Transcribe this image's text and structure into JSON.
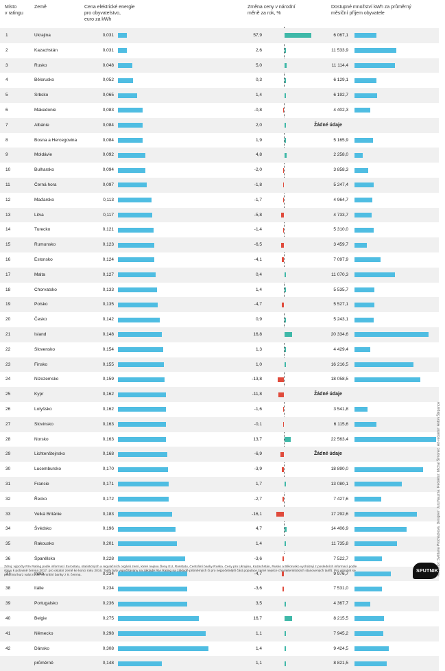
{
  "headers": {
    "rank": [
      "Místo",
      "v ratingu"
    ],
    "country": "Země",
    "price": [
      "Cena elektrické energie",
      "pro obyvatelstvo,",
      "euro za kWh"
    ],
    "change": [
      "Změna ceny v národní",
      "měně za rok, %"
    ],
    "kwh": [
      "Dostupné množství kWh za průměrný",
      "měsíční příjem obyvatele"
    ]
  },
  "colors": {
    "price_bar": "#4fbde2",
    "kwh_bar": "#4fbde2",
    "change_positive": "#3fb8a8",
    "change_negative": "#e04b3c",
    "row_shade": "#f0f0f0"
  },
  "no_data_label": "Žádné údaje",
  "chart_data": {
    "type": "table",
    "columns": [
      "Místo v ratingu",
      "Země",
      "Cena elektrické energie pro obyvatelstvo, euro za kWh",
      "Změna ceny v národní měně za rok, %",
      "Dostupné množství kWh za průměrný měsíční příjem obyvatele"
    ],
    "rows": [
      {
        "rank": "1",
        "country": "Ukrajina",
        "price": 0.031,
        "price_label": "0,031",
        "change": 57.9,
        "change_label": "57,9",
        "kwh": 6067.1,
        "kwh_label": "6 067,1"
      },
      {
        "rank": "2",
        "country": "Kazachstán",
        "price": 0.031,
        "price_label": "0,031",
        "change": 2.6,
        "change_label": "2,6",
        "kwh": 11533.9,
        "kwh_label": "11 533,9"
      },
      {
        "rank": "3",
        "country": "Rusko",
        "price": 0.048,
        "price_label": "0,048",
        "change": 5.0,
        "change_label": "5,0",
        "kwh": 11114.4,
        "kwh_label": "11 114,4"
      },
      {
        "rank": "4",
        "country": "Bělorusko",
        "price": 0.052,
        "price_label": "0,052",
        "change": 0.3,
        "change_label": "0,3",
        "kwh": 6129.1,
        "kwh_label": "6 129,1"
      },
      {
        "rank": "5",
        "country": "Srbsko",
        "price": 0.065,
        "price_label": "0,065",
        "change": 1.4,
        "change_label": "1,4",
        "kwh": 6192.7,
        "kwh_label": "6 192,7"
      },
      {
        "rank": "6",
        "country": "Makedonie",
        "price": 0.083,
        "price_label": "0,083",
        "change": -0.8,
        "change_label": "-0,8",
        "kwh": 4402.3,
        "kwh_label": "4 402,3"
      },
      {
        "rank": "7",
        "country": "Albánie",
        "price": 0.084,
        "price_label": "0,084",
        "change": 2.0,
        "change_label": "2,0",
        "kwh": null,
        "kwh_label": ""
      },
      {
        "rank": "8",
        "country": "Bosna a Hercegovina",
        "price": 0.084,
        "price_label": "0,084",
        "change": 1.9,
        "change_label": "1,9",
        "kwh": 5165.9,
        "kwh_label": "5 165,9"
      },
      {
        "rank": "9",
        "country": "Moldávie",
        "price": 0.092,
        "price_label": "0,092",
        "change": 4.8,
        "change_label": "4,8",
        "kwh": 2258.0,
        "kwh_label": "2 258,0"
      },
      {
        "rank": "10",
        "country": "Bulharsko",
        "price": 0.094,
        "price_label": "0,094",
        "change": -2.0,
        "change_label": "-2,0",
        "kwh": 3858.3,
        "kwh_label": "3 858,3"
      },
      {
        "rank": "11",
        "country": "Černá hora",
        "price": 0.097,
        "price_label": "0,097",
        "change": -1.8,
        "change_label": "-1,8",
        "kwh": 5247.4,
        "kwh_label": "5 247,4"
      },
      {
        "rank": "12",
        "country": "Maďarsko",
        "price": 0.113,
        "price_label": "0,113",
        "change": -1.7,
        "change_label": "-1,7",
        "kwh": 4964.7,
        "kwh_label": "4 964,7"
      },
      {
        "rank": "13",
        "country": "Litva",
        "price": 0.117,
        "price_label": "0,117",
        "change": -5.8,
        "change_label": "-5,8",
        "kwh": 4733.7,
        "kwh_label": "4 733,7"
      },
      {
        "rank": "14",
        "country": "Turecko",
        "price": 0.121,
        "price_label": "0,121",
        "change": -1.4,
        "change_label": "-1,4",
        "kwh": 5310.0,
        "kwh_label": "5 310,0"
      },
      {
        "rank": "15",
        "country": "Rumunsko",
        "price": 0.123,
        "price_label": "0,123",
        "change": -6.5,
        "change_label": "-6,5",
        "kwh": 3459.7,
        "kwh_label": "3 459,7"
      },
      {
        "rank": "16",
        "country": "Estonsko",
        "price": 0.124,
        "price_label": "0,124",
        "change": -4.1,
        "change_label": "-4,1",
        "kwh": 7097.9,
        "kwh_label": "7 097,9"
      },
      {
        "rank": "17",
        "country": "Malta",
        "price": 0.127,
        "price_label": "0,127",
        "change": 0.4,
        "change_label": "0,4",
        "kwh": 11070.3,
        "kwh_label": "11 070,3"
      },
      {
        "rank": "18",
        "country": "Chorvatsko",
        "price": 0.133,
        "price_label": "0,133",
        "change": 1.4,
        "change_label": "1,4",
        "kwh": 5535.7,
        "kwh_label": "5 535,7"
      },
      {
        "rank": "19",
        "country": "Polsko",
        "price": 0.135,
        "price_label": "0,135",
        "change": -4.7,
        "change_label": "-4,7",
        "kwh": 5527.1,
        "kwh_label": "5 527,1"
      },
      {
        "rank": "20",
        "country": "Česko",
        "price": 0.142,
        "price_label": "0,142",
        "change": 0.9,
        "change_label": "0,9",
        "kwh": 5243.1,
        "kwh_label": "5 243,1"
      },
      {
        "rank": "21",
        "country": "Island",
        "price": 0.148,
        "price_label": "0,148",
        "change": 16.8,
        "change_label": "16,8",
        "kwh": 20334.6,
        "kwh_label": "20 334,6"
      },
      {
        "rank": "22",
        "country": "Slovensko",
        "price": 0.154,
        "price_label": "0,154",
        "change": 1.3,
        "change_label": "1,3",
        "kwh": 4429.4,
        "kwh_label": "4 429,4"
      },
      {
        "rank": "23",
        "country": "Finsko",
        "price": 0.155,
        "price_label": "0,155",
        "change": 1.0,
        "change_label": "1,0",
        "kwh": 16216.5,
        "kwh_label": "16 216,5"
      },
      {
        "rank": "24",
        "country": "Nizozemsko",
        "price": 0.159,
        "price_label": "0,159",
        "change": -13.8,
        "change_label": "-13,8",
        "kwh": 18058.5,
        "kwh_label": "18 058,5"
      },
      {
        "rank": "25",
        "country": "Kypr",
        "price": 0.162,
        "price_label": "0,162",
        "change": -11.8,
        "change_label": "-11,8",
        "kwh": null,
        "kwh_label": ""
      },
      {
        "rank": "26",
        "country": "Lotyšsko",
        "price": 0.162,
        "price_label": "0,162",
        "change": -1.6,
        "change_label": "-1,6",
        "kwh": 3541.8,
        "kwh_label": "3 541,8"
      },
      {
        "rank": "27",
        "country": "Slovinsko",
        "price": 0.163,
        "price_label": "0,163",
        "change": -0.1,
        "change_label": "-0,1",
        "kwh": 6115.6,
        "kwh_label": "6 115,6"
      },
      {
        "rank": "28",
        "country": "Norsko",
        "price": 0.163,
        "price_label": "0,163",
        "change": 13.7,
        "change_label": "13,7",
        "kwh": 22563.4,
        "kwh_label": "22 563,4"
      },
      {
        "rank": "29",
        "country": "Lichtenštejnsko",
        "price": 0.168,
        "price_label": "0,168",
        "change": -6.9,
        "change_label": "-6,9",
        "kwh": null,
        "kwh_label": ""
      },
      {
        "rank": "30",
        "country": "Lucembursko",
        "price": 0.17,
        "price_label": "0,170",
        "change": -3.9,
        "change_label": "-3,9",
        "kwh": 18890.0,
        "kwh_label": "18 890,0"
      },
      {
        "rank": "31",
        "country": "Francie",
        "price": 0.171,
        "price_label": "0,171",
        "change": 1.7,
        "change_label": "1,7",
        "kwh": 13080.1,
        "kwh_label": "13 080,1"
      },
      {
        "rank": "32",
        "country": "Řecko",
        "price": 0.172,
        "price_label": "0,172",
        "change": -2.7,
        "change_label": "-2,7",
        "kwh": 7427.6,
        "kwh_label": "7 427,6"
      },
      {
        "rank": "33",
        "country": "Velká Británie",
        "price": 0.183,
        "price_label": "0,183",
        "change": -16.1,
        "change_label": "-16,1",
        "kwh": 17292.6,
        "kwh_label": "17 292,6"
      },
      {
        "rank": "34",
        "country": "Švédsko",
        "price": 0.196,
        "price_label": "0,196",
        "change": 4.7,
        "change_label": "4,7",
        "kwh": 14406.9,
        "kwh_label": "14 406,9"
      },
      {
        "rank": "35",
        "country": "Rakousko",
        "price": 0.201,
        "price_label": "0,201",
        "change": 1.4,
        "change_label": "1,4",
        "kwh": 11735.8,
        "kwh_label": "11 735,8"
      },
      {
        "rank": "36",
        "country": "Španělsko",
        "price": 0.228,
        "price_label": "0,228",
        "change": -3.6,
        "change_label": "-3,6",
        "kwh": 7522.7,
        "kwh_label": "7 522,7"
      },
      {
        "rank": "37",
        "country": "Irsko",
        "price": 0.234,
        "price_label": "0,234",
        "change": -4.7,
        "change_label": "-4,7",
        "kwh": 9976.7,
        "kwh_label": "9 976,7"
      },
      {
        "rank": "38",
        "country": "Itálie",
        "price": 0.234,
        "price_label": "0,234",
        "change": -3.6,
        "change_label": "-3,6",
        "kwh": 7531.0,
        "kwh_label": "7 531,0"
      },
      {
        "rank": "39",
        "country": "Portugalsko",
        "price": 0.236,
        "price_label": "0,236",
        "change": 3.5,
        "change_label": "3,5",
        "kwh": 4367.7,
        "kwh_label": "4 367,7"
      },
      {
        "rank": "40",
        "country": "Belgie",
        "price": 0.275,
        "price_label": "0,275",
        "change": 16.7,
        "change_label": "16,7",
        "kwh": 8215.5,
        "kwh_label": "8 215,5"
      },
      {
        "rank": "41",
        "country": "Německo",
        "price": 0.298,
        "price_label": "0,298",
        "change": 1.1,
        "change_label": "1,1",
        "kwh": 7945.2,
        "kwh_label": "7 945,2"
      },
      {
        "rank": "42",
        "country": "Dánsko",
        "price": 0.308,
        "price_label": "0,308",
        "change": 1.4,
        "change_label": "1,4",
        "kwh": 9424.5,
        "kwh_label": "9 424,5"
      },
      {
        "rank": "",
        "country": "průměrně",
        "price": 0.148,
        "price_label": "0,148",
        "change": 1.1,
        "change_label": "1,1",
        "kwh": 8821.5,
        "kwh_label": "8 821,5"
      }
    ]
  },
  "side_credit": "Redaktor: Světlana Procházková. Designer: Jurij Nauzha. Redaktor: Michal Šimonec. Art-redaktor: Anton Štěpanov",
  "footnote": "Zdroj: výpočty RIA Rating podle informací Eurostatu, statistických a regulačních orgánů zemí, které nejsou členy EU, Rosstatu, Centrální banky Ruska. Ceny pro Ukrajinu, Kazachstán, Rusko a Bělorusko vycházejí z posledních informací podle stavu k polovině června 2017, pro ostatní země ke konci roku 2016. Tarify byly vypočítávány na základě RIA Rating na základě průměrných či pro nejpočetnější část populace země nejvíce charakteristických stanovených tarifů. Pro výpočet se používal kurz valut ruské centrální banky z 9. června.",
  "logo_text": "SPUTNIK"
}
